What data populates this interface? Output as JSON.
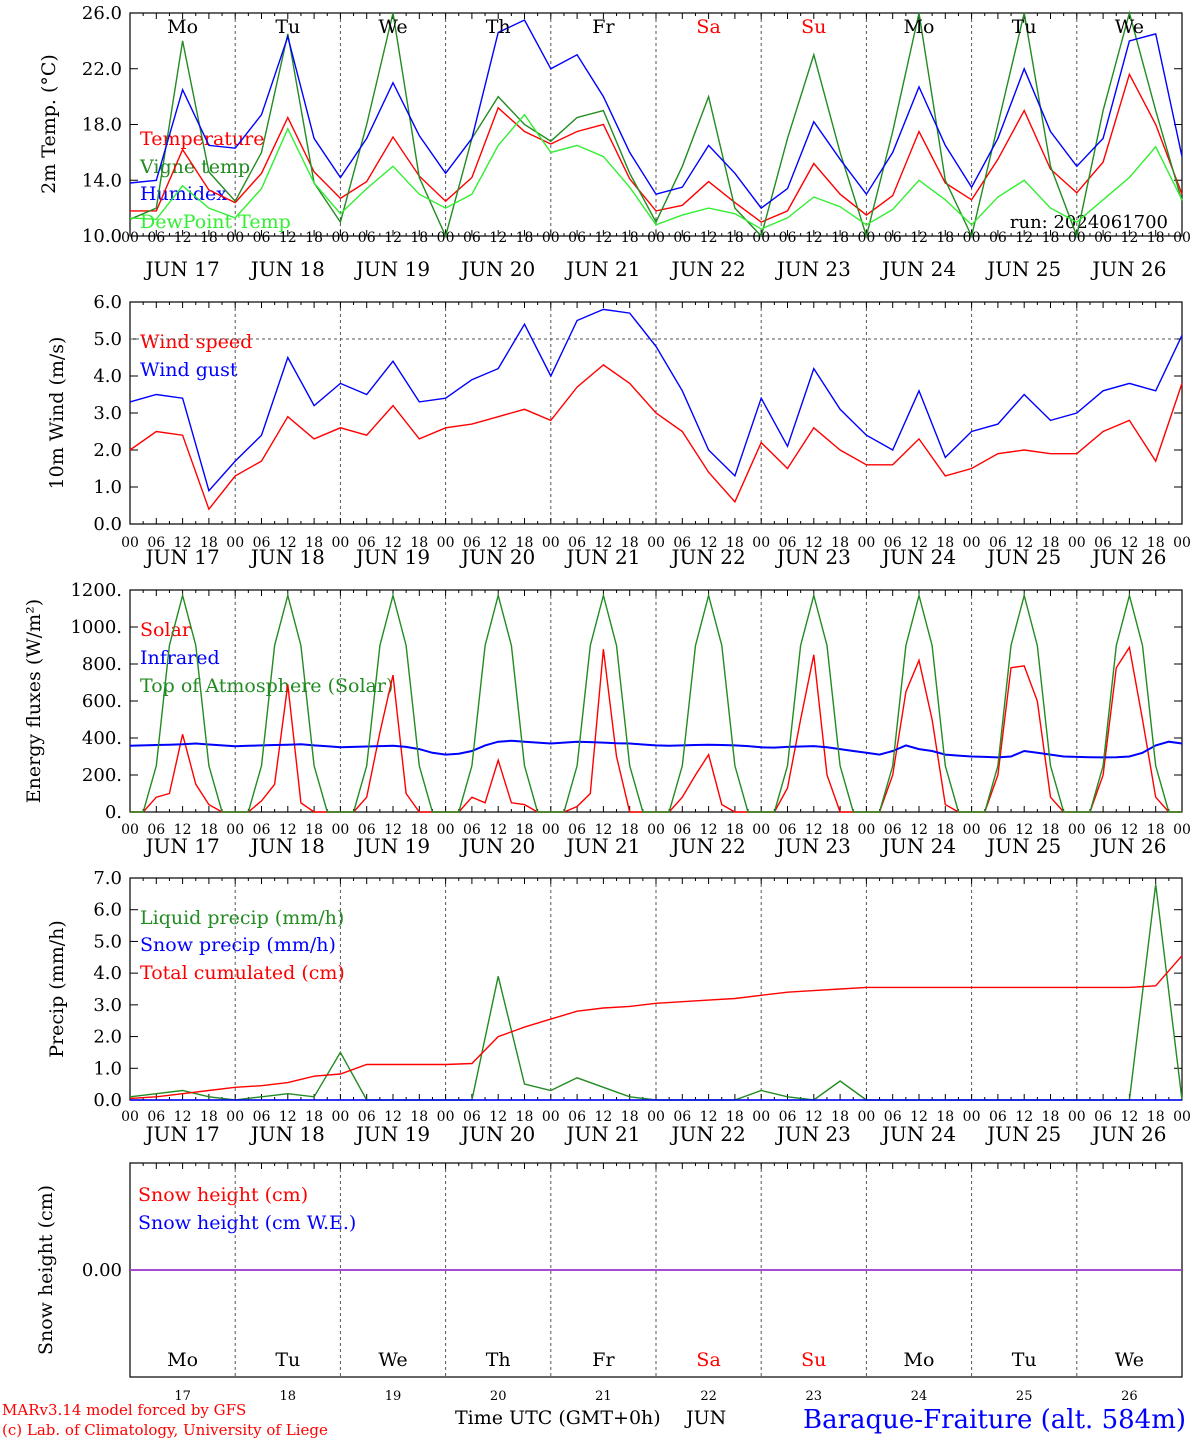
{
  "footer": {
    "model_line": "MARv3.14 model forced by GFS",
    "lab_line": "(c) Lab. of Climatology, University of Liege",
    "xlabel": "Time UTC (GMT+0h)",
    "month": "JUN",
    "station": "Baraque-Fraiture (alt. 584m)"
  },
  "days": {
    "weekday_labels": [
      "Mo",
      "Tu",
      "We",
      "Th",
      "Fr",
      "Sa",
      "Su",
      "Mo",
      "Tu",
      "We"
    ],
    "weekend_flags": [
      false,
      false,
      false,
      false,
      false,
      true,
      true,
      false,
      false,
      false
    ],
    "date_labels": [
      "JUN 17",
      "JUN 18",
      "JUN 19",
      "JUN 20",
      "JUN 21",
      "JUN 22",
      "JUN 23",
      "JUN 24",
      "JUN 25",
      "JUN 26"
    ],
    "day_numbers": [
      "17",
      "18",
      "19",
      "20",
      "21",
      "22",
      "23",
      "24",
      "25",
      "26"
    ],
    "hour_ticks": [
      "00",
      "06",
      "12",
      "18"
    ],
    "final_tick": "00"
  },
  "colors": {
    "red": "#ff0000",
    "green": "#228b22",
    "blue": "#0000ff",
    "lightgreen": "#33ee33",
    "purple": "#9932cc",
    "weekend": "#ff0000"
  },
  "chart_data": [
    {
      "type": "line",
      "ylabel": "2m Temp. (°C)",
      "ylim": [
        10,
        26
      ],
      "yticks": [
        "10.0",
        "14.0",
        "18.0",
        "22.0",
        "26.0"
      ],
      "run_label": "run: 2024061700",
      "x_hours": [
        0,
        6,
        12,
        18,
        24,
        30,
        36,
        42,
        48,
        54,
        60,
        66,
        72,
        78,
        84,
        90,
        96,
        102,
        108,
        114,
        120,
        126,
        132,
        138,
        144,
        150,
        156,
        162,
        168,
        174,
        180,
        186,
        192,
        198,
        204,
        210,
        216,
        222,
        228,
        234,
        240
      ],
      "series": [
        {
          "name": "Temperature",
          "color": "red",
          "values": [
            11.8,
            11.8,
            16.2,
            13.3,
            12.4,
            14.5,
            18.5,
            14.6,
            12.7,
            13.9,
            17.1,
            14.3,
            12.5,
            14.2,
            19.2,
            17.5,
            16.6,
            17.5,
            18.0,
            14.1,
            11.8,
            12.2,
            13.9,
            12.4,
            11.0,
            11.8,
            15.2,
            13.0,
            11.5,
            12.9,
            17.5,
            13.8,
            12.6,
            15.5,
            19.0,
            14.8,
            13.1,
            15.3,
            21.6,
            18.0,
            13.0
          ]
        },
        {
          "name": "Vigne temp",
          "color": "green",
          "values": [
            11.2,
            12.0,
            24.0,
            14.6,
            12.5,
            16.0,
            24.5,
            13.8,
            11.0,
            18.0,
            26.0,
            14.2,
            9.6,
            17.0,
            20.0,
            18.0,
            16.8,
            18.5,
            19.0,
            14.5,
            11.0,
            15.0,
            20.0,
            12.0,
            9.5,
            17.0,
            23.0,
            16.0,
            9.0,
            17.5,
            26.0,
            14.0,
            9.0,
            18.0,
            26.0,
            15.0,
            10.0,
            19.0,
            26.0,
            19.0,
            12.5
          ]
        },
        {
          "name": "Humidex",
          "color": "blue",
          "values": [
            13.8,
            14.0,
            20.5,
            16.5,
            16.3,
            18.7,
            24.3,
            17.0,
            14.2,
            17.0,
            21.0,
            17.2,
            14.5,
            17.0,
            24.6,
            25.5,
            22.0,
            23.0,
            20.0,
            16.0,
            13.0,
            13.5,
            16.5,
            14.5,
            12.0,
            13.4,
            18.2,
            15.5,
            13.0,
            16.0,
            20.7,
            16.5,
            13.5,
            17.0,
            22.0,
            17.5,
            15.0,
            17.0,
            24.0,
            24.5,
            15.7
          ]
        },
        {
          "name": "DewPoint Temp",
          "color": "lightgreen",
          "values": [
            11.3,
            11.2,
            13.6,
            12.0,
            11.3,
            13.4,
            17.7,
            13.8,
            11.6,
            13.4,
            15.0,
            13.0,
            12.0,
            13.0,
            16.5,
            18.7,
            16.0,
            16.5,
            15.7,
            13.5,
            10.8,
            11.5,
            12.0,
            11.6,
            10.5,
            11.3,
            12.8,
            12.1,
            10.8,
            11.9,
            14.0,
            12.6,
            10.8,
            12.8,
            14.0,
            12.0,
            11.0,
            12.6,
            14.2,
            16.4,
            12.6
          ]
        }
      ]
    },
    {
      "type": "line",
      "ylabel": "10m Wind (m/s)",
      "ylim": [
        0,
        6
      ],
      "yticks": [
        "0.0",
        "1.0",
        "2.0",
        "3.0",
        "4.0",
        "5.0",
        "6.0"
      ],
      "ref_line": 5.0,
      "x_hours": [
        0,
        6,
        12,
        18,
        24,
        30,
        36,
        42,
        48,
        54,
        60,
        66,
        72,
        78,
        84,
        90,
        96,
        102,
        108,
        114,
        120,
        126,
        132,
        138,
        144,
        150,
        156,
        162,
        168,
        174,
        180,
        186,
        192,
        198,
        204,
        210,
        216,
        222,
        228,
        234,
        240
      ],
      "series": [
        {
          "name": "Wind speed",
          "color": "red",
          "values": [
            2.0,
            2.5,
            2.4,
            0.4,
            1.3,
            1.7,
            2.9,
            2.3,
            2.6,
            2.4,
            3.2,
            2.3,
            2.6,
            2.7,
            2.9,
            3.1,
            2.8,
            3.7,
            4.3,
            3.8,
            3.0,
            2.5,
            1.4,
            0.6,
            2.2,
            1.5,
            2.6,
            2.0,
            1.6,
            1.6,
            2.3,
            1.3,
            1.5,
            1.9,
            2.0,
            1.9,
            1.9,
            2.5,
            2.8,
            1.7,
            3.8
          ]
        },
        {
          "name": "Wind gust",
          "color": "blue",
          "values": [
            3.3,
            3.5,
            3.4,
            0.9,
            1.7,
            2.4,
            4.5,
            3.2,
            3.8,
            3.5,
            4.4,
            3.3,
            3.4,
            3.9,
            4.2,
            5.4,
            4.0,
            5.5,
            5.8,
            5.7,
            4.8,
            3.6,
            2.0,
            1.3,
            3.4,
            2.1,
            4.2,
            3.1,
            2.4,
            2.0,
            3.6,
            1.8,
            2.5,
            2.7,
            3.5,
            2.8,
            3.0,
            3.6,
            3.8,
            3.6,
            5.1
          ]
        }
      ]
    },
    {
      "type": "line",
      "ylabel": "Energy fluxes (W/m²)",
      "ylim": [
        0,
        1200
      ],
      "yticks": [
        "0.",
        "200.",
        "400.",
        "600.",
        "800.",
        "1000.",
        "1200."
      ],
      "x_hours": [
        0,
        3,
        6,
        9,
        12,
        15,
        18,
        21,
        24,
        27,
        30,
        33,
        36,
        39,
        42,
        45,
        48,
        51,
        54,
        57,
        60,
        63,
        66,
        69,
        72,
        75,
        78,
        81,
        84,
        87,
        90,
        93,
        96,
        99,
        102,
        105,
        108,
        111,
        114,
        117,
        120,
        123,
        126,
        129,
        132,
        135,
        138,
        141,
        144,
        147,
        150,
        153,
        156,
        159,
        162,
        165,
        168,
        171,
        174,
        177,
        180,
        183,
        186,
        189,
        192,
        195,
        198,
        201,
        204,
        207,
        210,
        213,
        216,
        219,
        222,
        225,
        228,
        231,
        234,
        237,
        240
      ],
      "series": [
        {
          "name": "Solar",
          "color": "red",
          "values": [
            0,
            0,
            80,
            100,
            420,
            150,
            40,
            0,
            0,
            0,
            60,
            150,
            690,
            50,
            0,
            0,
            0,
            0,
            80,
            430,
            740,
            100,
            0,
            0,
            0,
            0,
            80,
            50,
            280,
            50,
            40,
            0,
            0,
            0,
            30,
            100,
            880,
            300,
            0,
            0,
            0,
            0,
            80,
            200,
            310,
            40,
            0,
            0,
            0,
            0,
            130,
            500,
            850,
            200,
            0,
            0,
            0,
            0,
            200,
            650,
            820,
            500,
            40,
            0,
            0,
            0,
            200,
            780,
            790,
            600,
            80,
            0,
            0,
            0,
            200,
            780,
            890,
            500,
            80,
            0,
            0
          ]
        },
        {
          "name": "Infrared",
          "color": "blue",
          "values": [
            358,
            360,
            362,
            364,
            366,
            370,
            365,
            360,
            355,
            358,
            360,
            362,
            364,
            366,
            360,
            355,
            350,
            352,
            354,
            356,
            358,
            352,
            340,
            320,
            310,
            315,
            330,
            360,
            380,
            385,
            380,
            375,
            370,
            375,
            380,
            378,
            375,
            372,
            370,
            365,
            360,
            358,
            360,
            362,
            364,
            362,
            360,
            356,
            350,
            348,
            352,
            354,
            356,
            350,
            340,
            330,
            320,
            310,
            330,
            360,
            340,
            330,
            310,
            305,
            300,
            298,
            295,
            300,
            330,
            320,
            310,
            300,
            298,
            296,
            295,
            296,
            300,
            320,
            360,
            380,
            370
          ]
        },
        {
          "name": "Top of Atmosphere (Solar)",
          "color": "green",
          "values": [
            0,
            0,
            250,
            900,
            1170,
            900,
            250,
            0,
            0,
            0,
            250,
            900,
            1170,
            900,
            250,
            0,
            0,
            0,
            250,
            900,
            1170,
            900,
            250,
            0,
            0,
            0,
            250,
            900,
            1170,
            900,
            250,
            0,
            0,
            0,
            250,
            900,
            1170,
            900,
            250,
            0,
            0,
            0,
            250,
            900,
            1170,
            900,
            250,
            0,
            0,
            0,
            250,
            900,
            1170,
            900,
            250,
            0,
            0,
            0,
            250,
            900,
            1170,
            900,
            250,
            0,
            0,
            0,
            250,
            900,
            1170,
            900,
            250,
            0,
            0,
            0,
            250,
            900,
            1170,
            900,
            250,
            0,
            0
          ]
        }
      ]
    },
    {
      "type": "line",
      "ylabel": "Precip (mm/h)",
      "ylim": [
        0,
        7
      ],
      "yticks": [
        "0.0",
        "1.0",
        "2.0",
        "3.0",
        "4.0",
        "5.0",
        "6.0",
        "7.0"
      ],
      "x_hours": [
        0,
        6,
        12,
        18,
        24,
        30,
        36,
        42,
        48,
        54,
        60,
        66,
        72,
        78,
        84,
        90,
        96,
        102,
        108,
        114,
        120,
        126,
        132,
        138,
        144,
        150,
        156,
        162,
        168,
        174,
        180,
        186,
        192,
        198,
        204,
        210,
        216,
        222,
        228,
        234,
        240
      ],
      "series": [
        {
          "name": "Liquid precip (mm/h)",
          "color": "green",
          "values": [
            0.1,
            0.2,
            0.3,
            0.1,
            0,
            0.1,
            0.2,
            0.1,
            1.5,
            0,
            0,
            0,
            0,
            0,
            3.9,
            0.5,
            0.3,
            0.7,
            0.4,
            0.1,
            0,
            0,
            0,
            0,
            0.3,
            0.1,
            0,
            0.6,
            0,
            0,
            0,
            0,
            0,
            0,
            0,
            0,
            0,
            0,
            0,
            6.8,
            0
          ]
        },
        {
          "name": "Snow precip (mm/h)",
          "color": "blue",
          "values": [
            0,
            0,
            0,
            0,
            0,
            0,
            0,
            0,
            0,
            0,
            0,
            0,
            0,
            0,
            0,
            0,
            0,
            0,
            0,
            0,
            0,
            0,
            0,
            0,
            0,
            0,
            0,
            0,
            0,
            0,
            0,
            0,
            0,
            0,
            0,
            0,
            0,
            0,
            0,
            0,
            0
          ]
        },
        {
          "name": "Total cumulated (cm)",
          "color": "red",
          "values": [
            0.05,
            0.1,
            0.2,
            0.3,
            0.4,
            0.45,
            0.55,
            0.75,
            0.82,
            1.12,
            1.12,
            1.12,
            1.12,
            1.15,
            2.0,
            2.3,
            2.55,
            2.8,
            2.9,
            2.95,
            3.05,
            3.1,
            3.15,
            3.2,
            3.3,
            3.4,
            3.45,
            3.5,
            3.55,
            3.55,
            3.55,
            3.55,
            3.55,
            3.55,
            3.55,
            3.55,
            3.55,
            3.55,
            3.55,
            3.6,
            4.55
          ]
        }
      ]
    },
    {
      "type": "line",
      "ylabel": "Snow height (cm)",
      "ylim": [
        -1,
        1
      ],
      "yticks": [
        "0.00"
      ],
      "x_hours": [
        0,
        240
      ],
      "series": [
        {
          "name": "Snow height (cm)",
          "color": "red",
          "values": [
            0,
            0
          ]
        },
        {
          "name": "Snow height (cm W.E.)",
          "color": "blue",
          "values": [
            0,
            0
          ]
        }
      ]
    }
  ]
}
